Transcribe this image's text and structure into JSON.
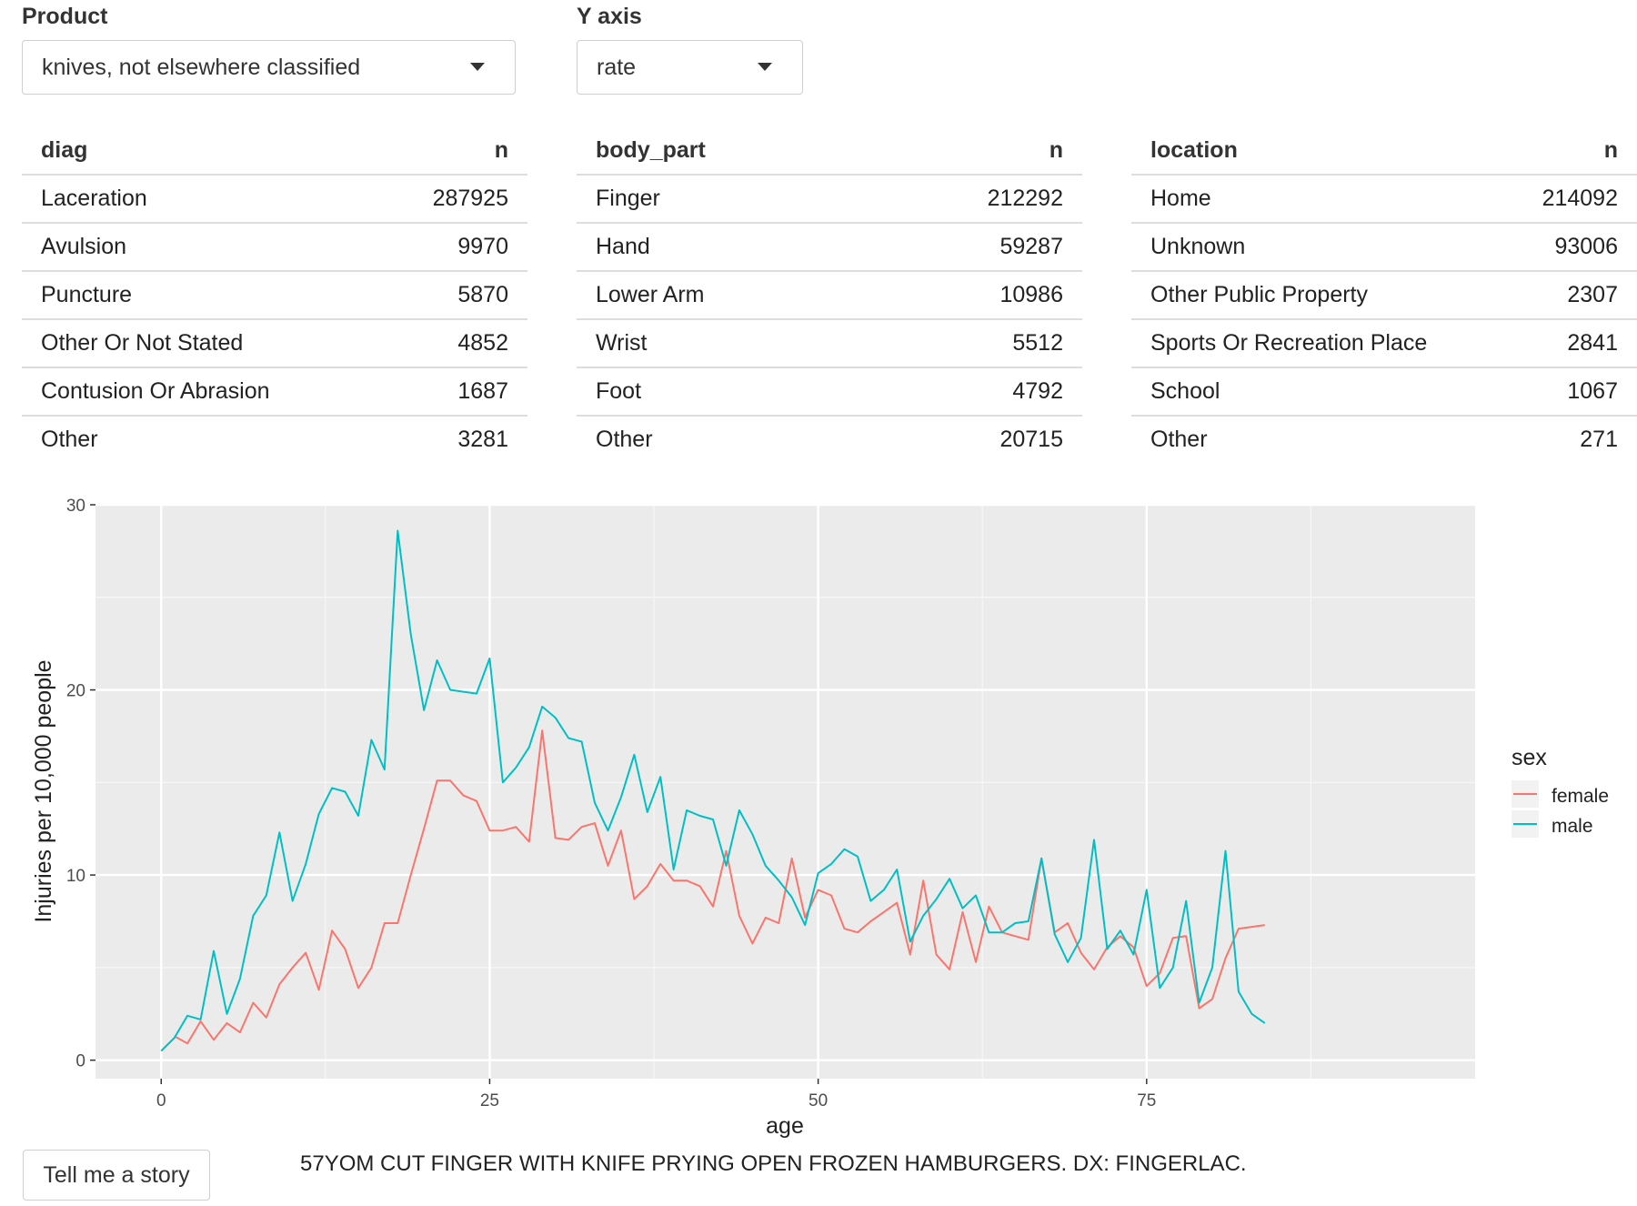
{
  "controls": {
    "product": {
      "label": "Product",
      "value": "knives, not elsewhere classified"
    },
    "yaxis": {
      "label": "Y axis",
      "value": "rate"
    }
  },
  "tables": [
    {
      "key_header": "diag",
      "n_header": "n",
      "rows": [
        [
          "Laceration",
          "287925"
        ],
        [
          "Avulsion",
          "9970"
        ],
        [
          "Puncture",
          "5870"
        ],
        [
          "Other Or Not Stated",
          "4852"
        ],
        [
          "Contusion Or Abrasion",
          "1687"
        ],
        [
          "Other",
          "3281"
        ]
      ]
    },
    {
      "key_header": "body_part",
      "n_header": "n",
      "rows": [
        [
          "Finger",
          "212292"
        ],
        [
          "Hand",
          "59287"
        ],
        [
          "Lower Arm",
          "10986"
        ],
        [
          "Wrist",
          "5512"
        ],
        [
          "Foot",
          "4792"
        ],
        [
          "Other",
          "20715"
        ]
      ]
    },
    {
      "key_header": "location",
      "n_header": "n",
      "rows": [
        [
          "Home",
          "214092"
        ],
        [
          "Unknown",
          "93006"
        ],
        [
          "Other Public Property",
          "2307"
        ],
        [
          "Sports Or Recreation Place",
          "2841"
        ],
        [
          "School",
          "1067"
        ],
        [
          "Other",
          "271"
        ]
      ]
    }
  ],
  "chart_data": {
    "type": "line",
    "xlabel": "age",
    "ylabel": "Injuries per 10,000 people",
    "xlim": [
      -5,
      100
    ],
    "ylim": [
      -1,
      30
    ],
    "xticks": [
      0,
      25,
      50,
      75
    ],
    "yticks": [
      0,
      10,
      20,
      30
    ],
    "grid": true,
    "legend": {
      "title": "sex",
      "position": "right"
    },
    "series": [
      {
        "name": "female",
        "color": "#F8766D",
        "x": [
          1,
          2,
          3,
          4,
          5,
          6,
          7,
          8,
          9,
          10,
          11,
          12,
          13,
          14,
          15,
          16,
          17,
          18,
          19,
          20,
          21,
          22,
          23,
          24,
          25,
          26,
          27,
          28,
          29,
          30,
          31,
          32,
          33,
          34,
          35,
          36,
          37,
          38,
          39,
          40,
          41,
          42,
          43,
          44,
          45,
          46,
          47,
          48,
          49,
          50,
          51,
          52,
          53,
          54,
          55,
          56,
          57,
          58,
          59,
          60,
          61,
          62,
          63,
          64,
          65,
          66,
          67,
          68,
          69,
          70,
          71,
          72,
          73,
          74,
          75,
          76,
          77,
          78,
          79,
          80,
          81,
          82,
          83,
          84
        ],
        "y": [
          1.3,
          0.9,
          2.1,
          1.1,
          2.0,
          1.5,
          3.1,
          2.3,
          4.1,
          5.0,
          5.8,
          3.8,
          7.0,
          6.0,
          3.9,
          5.0,
          7.4,
          7.4,
          10.0,
          12.5,
          15.1,
          15.1,
          14.3,
          14.0,
          12.4,
          12.4,
          12.6,
          11.8,
          17.8,
          12.0,
          11.9,
          12.6,
          12.8,
          10.5,
          12.4,
          8.7,
          9.4,
          10.6,
          9.7,
          9.7,
          9.4,
          8.3,
          11.3,
          7.8,
          6.3,
          7.7,
          7.4,
          10.9,
          7.7,
          9.2,
          8.9,
          7.1,
          6.9,
          7.5,
          8.0,
          8.5,
          5.7,
          9.7,
          5.7,
          4.9,
          8.0,
          5.3,
          8.3,
          6.9,
          6.7,
          6.5,
          10.9,
          6.9,
          7.4,
          5.8,
          4.9,
          6.1,
          6.7,
          6.1,
          4.0,
          4.7,
          6.6,
          6.7,
          2.8,
          3.3,
          5.5,
          7.1,
          7.2,
          7.3
        ]
      },
      {
        "name": "male",
        "color": "#00BFC4",
        "x": [
          0,
          1,
          2,
          3,
          4,
          5,
          6,
          7,
          8,
          9,
          10,
          11,
          12,
          13,
          14,
          15,
          16,
          17,
          18,
          19,
          20,
          21,
          22,
          23,
          24,
          25,
          26,
          27,
          28,
          29,
          30,
          31,
          32,
          33,
          34,
          35,
          36,
          37,
          38,
          39,
          40,
          41,
          42,
          43,
          44,
          45,
          46,
          47,
          48,
          49,
          50,
          51,
          52,
          53,
          54,
          55,
          56,
          57,
          58,
          59,
          60,
          61,
          62,
          63,
          64,
          65,
          66,
          67,
          68,
          69,
          70,
          71,
          72,
          73,
          74,
          75,
          76,
          77,
          78,
          79,
          80,
          81,
          82,
          83,
          84
        ],
        "y": [
          0.5,
          1.2,
          2.4,
          2.2,
          5.9,
          2.5,
          4.4,
          7.8,
          8.9,
          12.3,
          8.6,
          10.6,
          13.3,
          14.7,
          14.5,
          13.2,
          17.3,
          15.7,
          28.6,
          23.0,
          18.9,
          21.6,
          20.0,
          19.9,
          19.8,
          21.7,
          15.0,
          15.8,
          16.9,
          19.1,
          18.5,
          17.4,
          17.2,
          13.9,
          12.4,
          14.2,
          16.5,
          13.4,
          15.3,
          10.3,
          13.5,
          13.2,
          13.0,
          10.5,
          13.5,
          12.2,
          10.5,
          9.7,
          8.8,
          7.3,
          10.1,
          10.6,
          11.4,
          11.0,
          8.6,
          9.2,
          10.3,
          6.4,
          7.8,
          8.7,
          9.8,
          8.2,
          8.9,
          6.9,
          6.9,
          7.4,
          7.5,
          10.9,
          6.8,
          5.3,
          6.6,
          11.9,
          6.0,
          7.0,
          5.7,
          9.2,
          3.9,
          5.0,
          8.6,
          3.1,
          5.0,
          11.3,
          3.7,
          2.5,
          2.0
        ]
      }
    ]
  },
  "story": {
    "button_label": "Tell me a story",
    "narrative": "57YOM CUT FINGER WITH KNIFE PRYING OPEN FROZEN HAMBURGERS. DX: FINGERLAC."
  }
}
